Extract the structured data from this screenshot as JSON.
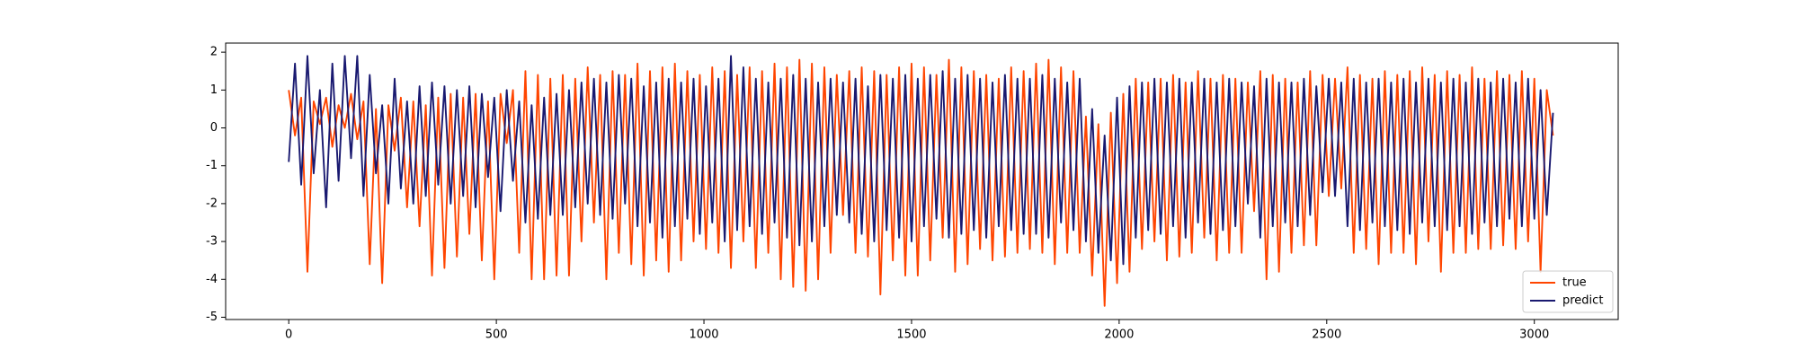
{
  "chart_data": {
    "type": "line",
    "x": [
      0,
      15,
      30,
      45,
      60,
      75,
      90,
      105,
      120,
      135,
      150,
      165,
      180,
      195,
      210,
      225,
      240,
      255,
      270,
      285,
      300,
      315,
      330,
      345,
      360,
      375,
      390,
      405,
      420,
      435,
      450,
      465,
      480,
      495,
      510,
      525,
      540,
      555,
      570,
      585,
      600,
      615,
      630,
      645,
      660,
      675,
      690,
      705,
      720,
      735,
      750,
      765,
      780,
      795,
      810,
      825,
      840,
      855,
      870,
      885,
      900,
      915,
      930,
      945,
      960,
      975,
      990,
      1005,
      1020,
      1035,
      1050,
      1065,
      1080,
      1095,
      1110,
      1125,
      1140,
      1155,
      1170,
      1185,
      1200,
      1215,
      1230,
      1245,
      1260,
      1275,
      1290,
      1305,
      1320,
      1335,
      1350,
      1365,
      1380,
      1395,
      1410,
      1425,
      1440,
      1455,
      1470,
      1485,
      1500,
      1515,
      1530,
      1545,
      1560,
      1575,
      1590,
      1605,
      1620,
      1635,
      1650,
      1665,
      1680,
      1695,
      1710,
      1725,
      1740,
      1755,
      1770,
      1785,
      1800,
      1815,
      1830,
      1845,
      1860,
      1875,
      1890,
      1905,
      1920,
      1935,
      1950,
      1965,
      1980,
      1995,
      2010,
      2025,
      2040,
      2055,
      2070,
      2085,
      2100,
      2115,
      2130,
      2145,
      2160,
      2175,
      2190,
      2205,
      2220,
      2235,
      2250,
      2265,
      2280,
      2295,
      2310,
      2325,
      2340,
      2355,
      2370,
      2385,
      2400,
      2415,
      2430,
      2445,
      2460,
      2475,
      2490,
      2505,
      2520,
      2535,
      2550,
      2565,
      2580,
      2595,
      2610,
      2625,
      2640,
      2655,
      2670,
      2685,
      2700,
      2715,
      2730,
      2745,
      2760,
      2775,
      2790,
      2805,
      2820,
      2835,
      2850,
      2865,
      2880,
      2895,
      2910,
      2925,
      2940,
      2955,
      2970,
      2985,
      3000,
      3015,
      3030,
      3045
    ],
    "series": [
      {
        "name": "true",
        "color": "#ff4500",
        "values": [
          1.0,
          -0.2,
          0.8,
          -3.8,
          0.7,
          0.1,
          0.8,
          -0.5,
          0.6,
          0.0,
          0.9,
          -0.3,
          0.7,
          -3.6,
          0.5,
          -4.1,
          0.6,
          -0.6,
          0.8,
          -2.1,
          0.7,
          -2.6,
          0.6,
          -3.9,
          0.8,
          -3.7,
          0.9,
          -3.4,
          0.8,
          -2.8,
          0.9,
          -3.5,
          0.7,
          -4.0,
          0.9,
          -0.4,
          1.0,
          -3.3,
          1.5,
          -4.0,
          1.4,
          -4.0,
          1.3,
          -3.9,
          1.4,
          -3.9,
          1.3,
          -3.0,
          1.6,
          -2.5,
          1.4,
          -4.0,
          1.5,
          -3.3,
          1.4,
          -3.6,
          1.7,
          -3.9,
          1.5,
          -3.5,
          1.6,
          -3.8,
          1.7,
          -3.5,
          1.5,
          -3.0,
          1.4,
          -3.2,
          1.6,
          -3.3,
          1.5,
          -3.7,
          1.4,
          -3.0,
          1.6,
          -3.7,
          1.5,
          -3.3,
          1.7,
          -4.0,
          1.6,
          -4.2,
          1.8,
          -4.3,
          1.7,
          -4.0,
          1.6,
          -3.3,
          1.4,
          -2.3,
          1.5,
          -3.3,
          1.6,
          -3.4,
          1.5,
          -4.4,
          1.4,
          -3.5,
          1.6,
          -3.9,
          1.7,
          -3.9,
          1.6,
          -3.5,
          1.4,
          -2.9,
          1.8,
          -3.8,
          1.6,
          -3.6,
          1.5,
          -3.2,
          1.4,
          -3.5,
          1.3,
          -3.4,
          1.6,
          -3.3,
          1.5,
          -3.2,
          1.7,
          -3.3,
          1.8,
          -3.6,
          1.6,
          -3.3,
          1.5,
          -3.3,
          0.3,
          -3.9,
          0.1,
          -4.7,
          0.4,
          -4.1,
          0.9,
          -3.8,
          1.3,
          -3.2,
          1.2,
          -3.0,
          1.3,
          -3.5,
          1.4,
          -3.4,
          1.2,
          -3.3,
          1.5,
          -2.9,
          1.3,
          -3.5,
          1.4,
          -3.3,
          1.3,
          -3.3,
          1.2,
          -2.2,
          1.5,
          -4.0,
          1.4,
          -3.8,
          1.3,
          -3.3,
          1.2,
          -3.1,
          1.5,
          -3.1,
          1.4,
          -1.8,
          1.3,
          -1.6,
          1.6,
          -3.3,
          1.4,
          -3.2,
          1.3,
          -3.6,
          1.5,
          -3.3,
          1.4,
          -3.3,
          1.5,
          -3.6,
          1.6,
          -3.0,
          1.4,
          -3.8,
          1.5,
          -3.3,
          1.4,
          -3.3,
          1.6,
          -3.2,
          1.3,
          -3.2,
          1.5,
          -3.1,
          1.4,
          -3.2,
          1.5,
          -3.0,
          1.3,
          -3.8,
          1.0,
          -0.2
        ]
      },
      {
        "name": "predict",
        "color": "#191970",
        "values": [
          -0.9,
          1.7,
          -1.5,
          1.9,
          -1.2,
          1.0,
          -2.1,
          1.7,
          -1.4,
          1.9,
          -0.8,
          1.9,
          -1.8,
          1.4,
          -1.2,
          0.6,
          -2.0,
          1.3,
          -1.6,
          0.7,
          -2.0,
          1.1,
          -1.8,
          1.2,
          -1.5,
          1.1,
          -2.0,
          1.0,
          -1.8,
          1.1,
          -2.1,
          0.9,
          -1.3,
          0.8,
          -2.2,
          1.0,
          -1.4,
          0.7,
          -2.5,
          0.6,
          -2.4,
          0.8,
          -2.3,
          0.9,
          -2.3,
          1.0,
          -2.1,
          1.2,
          -2.0,
          1.3,
          -2.3,
          1.2,
          -2.4,
          1.4,
          -2.0,
          1.3,
          -2.6,
          1.1,
          -2.5,
          1.2,
          -2.9,
          1.3,
          -2.6,
          1.2,
          -2.4,
          1.3,
          -2.8,
          1.1,
          -2.5,
          1.3,
          -3.0,
          1.9,
          -2.7,
          1.6,
          -2.6,
          1.3,
          -2.8,
          1.2,
          -2.5,
          1.3,
          -2.9,
          1.4,
          -3.1,
          1.3,
          -3.0,
          1.2,
          -2.6,
          1.3,
          -2.3,
          1.2,
          -2.5,
          1.3,
          -2.8,
          1.1,
          -3.0,
          1.4,
          -2.7,
          1.3,
          -2.9,
          1.4,
          -3.0,
          1.3,
          -2.6,
          1.4,
          -2.4,
          1.5,
          -2.9,
          1.3,
          -2.8,
          1.4,
          -2.7,
          1.3,
          -2.9,
          1.2,
          -2.6,
          1.4,
          -2.7,
          1.3,
          -2.8,
          1.3,
          -2.8,
          1.4,
          -2.9,
          1.3,
          -2.5,
          1.2,
          -2.7,
          1.3,
          -3.0,
          0.5,
          -3.3,
          -0.2,
          -3.5,
          0.8,
          -3.6,
          1.1,
          -2.9,
          1.2,
          -2.7,
          1.3,
          -2.8,
          1.2,
          -2.6,
          1.3,
          -2.9,
          1.2,
          -2.5,
          1.3,
          -2.8,
          1.2,
          -2.7,
          1.3,
          -2.6,
          1.2,
          -2.0,
          1.1,
          -2.9,
          1.3,
          -2.6,
          1.2,
          -2.5,
          1.2,
          -2.6,
          1.3,
          -2.3,
          1.1,
          -1.7,
          1.3,
          -1.8,
          1.2,
          -2.6,
          1.3,
          -2.7,
          1.2,
          -2.5,
          1.3,
          -2.6,
          1.2,
          -2.7,
          1.3,
          -2.8,
          1.2,
          -2.5,
          1.3,
          -2.6,
          1.2,
          -2.7,
          1.3,
          -2.6,
          1.2,
          -2.8,
          1.3,
          -2.5,
          1.2,
          -2.6,
          1.3,
          -2.4,
          1.2,
          -2.6,
          1.3,
          -2.4,
          1.0,
          -2.3,
          0.4
        ]
      }
    ],
    "xlim": [
      -152,
      3202
    ],
    "ylim": [
      -5.06,
      2.24
    ],
    "xticks": [
      0,
      500,
      1000,
      1500,
      2000,
      2500,
      3000
    ],
    "yticks": [
      -5,
      -4,
      -3,
      -2,
      -1,
      0,
      1,
      2
    ],
    "grid": false,
    "legend": "lower right"
  }
}
